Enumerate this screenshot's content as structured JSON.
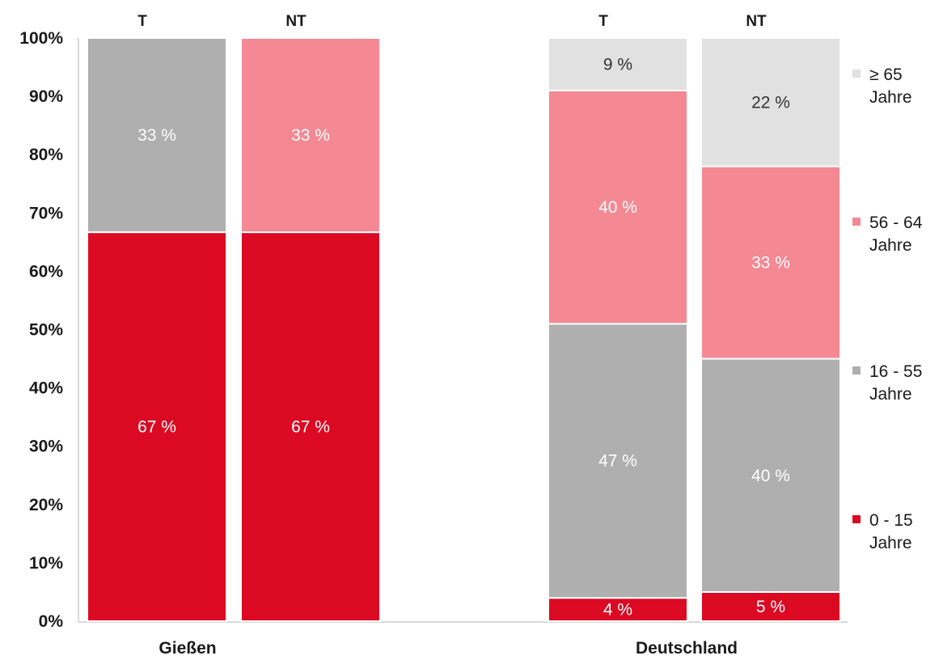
{
  "chart_data": {
    "type": "bar",
    "stacked": true,
    "y_axis": {
      "ylim": [
        0,
        100
      ],
      "ticks": [
        "0%",
        "10%",
        "20%",
        "30%",
        "40%",
        "50%",
        "60%",
        "70%",
        "80%",
        "90%",
        "100%"
      ]
    },
    "series": [
      {
        "name": "0 - 15 Jahre",
        "color": "#dc0923"
      },
      {
        "name": "16 - 55 Jahre",
        "color": "#afafaf"
      },
      {
        "name": "56 - 64 Jahre",
        "color": "#f48893"
      },
      {
        "name": "≥ 65 Jahre",
        "color": "#e1e1e1"
      }
    ],
    "groups": [
      {
        "label": "Gießen",
        "bars": [
          {
            "label": "T",
            "segments": [
              {
                "series": 0,
                "value": 66.7,
                "label": "67 %",
                "show": true
              },
              {
                "series": 1,
                "value": 33.3,
                "label": "33 %",
                "show": true
              },
              {
                "series": 2,
                "value": 0,
                "label": "",
                "show": false
              },
              {
                "series": 3,
                "value": 0,
                "label": "",
                "show": false
              }
            ]
          },
          {
            "label": "NT",
            "segments": [
              {
                "series": 0,
                "value": 66.7,
                "label": "67 %",
                "show": true
              },
              {
                "series": 1,
                "value": 0,
                "label": "",
                "show": false
              },
              {
                "series": 2,
                "value": 33.3,
                "label": "33 %",
                "show": true
              },
              {
                "series": 3,
                "value": 0,
                "label": "",
                "show": false
              }
            ]
          }
        ]
      },
      {
        "label": "Deutschland",
        "bars": [
          {
            "label": "T",
            "segments": [
              {
                "series": 0,
                "value": 4,
                "label": "4 %",
                "show": true
              },
              {
                "series": 1,
                "value": 47,
                "label": "47 %",
                "show": true
              },
              {
                "series": 2,
                "value": 40,
                "label": "40 %",
                "show": true
              },
              {
                "series": 3,
                "value": 9,
                "label": "9 %",
                "show": true
              }
            ]
          },
          {
            "label": "NT",
            "segments": [
              {
                "series": 0,
                "value": 5,
                "label": "5 %",
                "show": true
              },
              {
                "series": 1,
                "value": 40,
                "label": "40 %",
                "show": true
              },
              {
                "series": 2,
                "value": 33,
                "label": "33 %",
                "show": true
              },
              {
                "series": 3,
                "value": 22,
                "label": "22 %",
                "show": true
              }
            ]
          }
        ]
      }
    ],
    "legend": {
      "position": "right",
      "items": [
        {
          "series": 3,
          "line1": "≥ 65",
          "line2": "Jahre"
        },
        {
          "series": 2,
          "line1": "56 - 64",
          "line2": "Jahre"
        },
        {
          "series": 1,
          "line1": "16 - 55",
          "line2": "Jahre"
        },
        {
          "series": 0,
          "line1": "0 - 15",
          "line2": "Jahre"
        }
      ]
    },
    "grid": false
  }
}
